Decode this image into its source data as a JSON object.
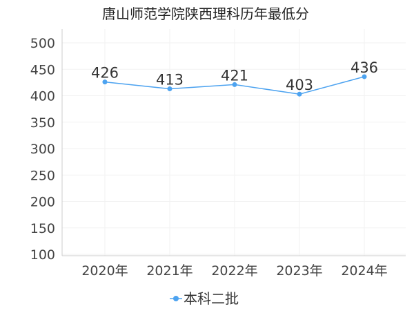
{
  "chart_data": {
    "type": "line",
    "title": "唐山师范学院陕西理科历年最低分",
    "xlabel": "",
    "ylabel": "",
    "categories": [
      "2020年",
      "2021年",
      "2022年",
      "2023年",
      "2024年"
    ],
    "series": [
      {
        "name": "本科二批",
        "values": [
          426,
          413,
          421,
          403,
          436
        ],
        "color": "#4da3f0"
      }
    ],
    "ylim": [
      100,
      500
    ],
    "yticks": [
      100,
      150,
      200,
      250,
      300,
      350,
      400,
      450,
      500
    ],
    "grid": true,
    "legend": "bottom-center"
  }
}
